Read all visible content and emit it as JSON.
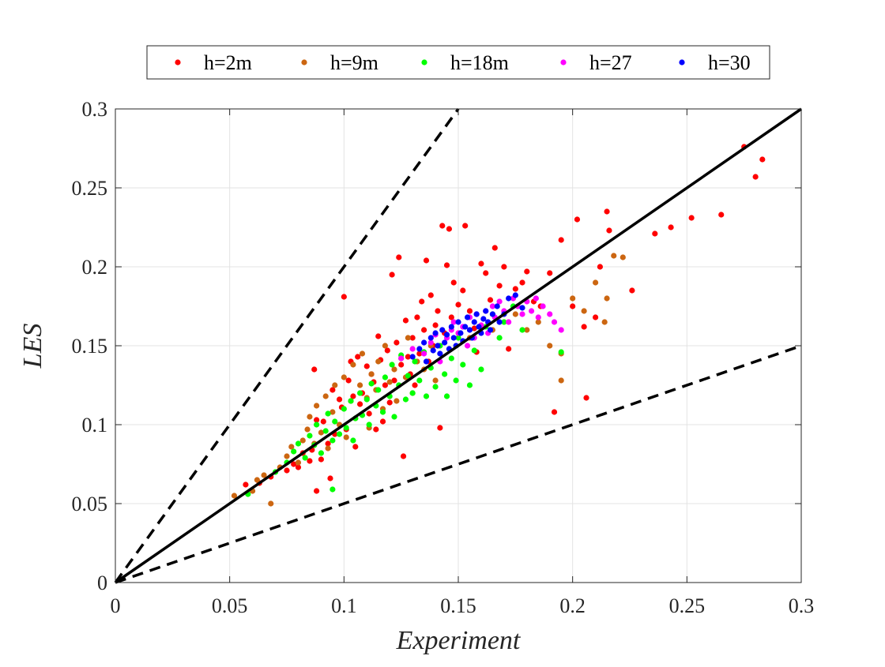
{
  "chart_data": {
    "type": "scatter",
    "xlabel": "Experiment",
    "ylabel": "LES",
    "xlim": [
      0,
      0.3
    ],
    "ylim": [
      0,
      0.3
    ],
    "grid": true,
    "legend_position": "top-outside",
    "x_ticks": [
      "0",
      "0.05",
      "0.1",
      "0.15",
      "0.2",
      "0.25",
      "0.3"
    ],
    "y_ticks": [
      "0",
      "0.05",
      "0.1",
      "0.15",
      "0.2",
      "0.25",
      "0.3"
    ],
    "reference_lines": [
      {
        "style": "solid",
        "x": [
          0,
          0.3
        ],
        "y": [
          0,
          0.3
        ]
      },
      {
        "style": "dashed",
        "x": [
          0,
          0.15
        ],
        "y": [
          0,
          0.3
        ]
      },
      {
        "style": "dashed",
        "x": [
          0,
          0.3
        ],
        "y": [
          0,
          0.15
        ]
      }
    ],
    "series": [
      {
        "name": "h=2m",
        "color": "#ff0000",
        "points": [
          [
            0.057,
            0.062
          ],
          [
            0.063,
            0.063
          ],
          [
            0.068,
            0.067
          ],
          [
            0.075,
            0.071
          ],
          [
            0.078,
            0.075
          ],
          [
            0.08,
            0.073
          ],
          [
            0.082,
            0.082
          ],
          [
            0.085,
            0.077
          ],
          [
            0.086,
            0.084
          ],
          [
            0.087,
            0.135
          ],
          [
            0.088,
            0.103
          ],
          [
            0.088,
            0.058
          ],
          [
            0.09,
            0.078
          ],
          [
            0.091,
            0.102
          ],
          [
            0.093,
            0.088
          ],
          [
            0.094,
            0.066
          ],
          [
            0.095,
            0.122
          ],
          [
            0.096,
            0.094
          ],
          [
            0.098,
            0.116
          ],
          [
            0.099,
            0.111
          ],
          [
            0.1,
            0.181
          ],
          [
            0.101,
            0.097
          ],
          [
            0.102,
            0.128
          ],
          [
            0.103,
            0.14
          ],
          [
            0.104,
            0.118
          ],
          [
            0.105,
            0.086
          ],
          [
            0.106,
            0.143
          ],
          [
            0.107,
            0.113
          ],
          [
            0.108,
            0.12
          ],
          [
            0.11,
            0.137
          ],
          [
            0.111,
            0.107
          ],
          [
            0.112,
            0.132
          ],
          [
            0.113,
            0.127
          ],
          [
            0.114,
            0.097
          ],
          [
            0.115,
            0.156
          ],
          [
            0.116,
            0.141
          ],
          [
            0.117,
            0.102
          ],
          [
            0.118,
            0.125
          ],
          [
            0.119,
            0.147
          ],
          [
            0.12,
            0.114
          ],
          [
            0.121,
            0.195
          ],
          [
            0.122,
            0.128
          ],
          [
            0.123,
            0.152
          ],
          [
            0.124,
            0.206
          ],
          [
            0.125,
            0.138
          ],
          [
            0.126,
            0.08
          ],
          [
            0.127,
            0.166
          ],
          [
            0.128,
            0.143
          ],
          [
            0.129,
            0.132
          ],
          [
            0.13,
            0.155
          ],
          [
            0.131,
            0.125
          ],
          [
            0.132,
            0.168
          ],
          [
            0.133,
            0.145
          ],
          [
            0.134,
            0.178
          ],
          [
            0.135,
            0.16
          ],
          [
            0.136,
            0.204
          ],
          [
            0.137,
            0.14
          ],
          [
            0.138,
            0.182
          ],
          [
            0.139,
            0.15
          ],
          [
            0.14,
            0.163
          ],
          [
            0.141,
            0.172
          ],
          [
            0.142,
            0.098
          ],
          [
            0.143,
            0.226
          ],
          [
            0.144,
            0.158
          ],
          [
            0.145,
            0.201
          ],
          [
            0.146,
            0.224
          ],
          [
            0.147,
            0.168
          ],
          [
            0.148,
            0.19
          ],
          [
            0.15,
            0.176
          ],
          [
            0.152,
            0.185
          ],
          [
            0.153,
            0.226
          ],
          [
            0.155,
            0.172
          ],
          [
            0.157,
            0.161
          ],
          [
            0.158,
            0.146
          ],
          [
            0.16,
            0.202
          ],
          [
            0.162,
            0.196
          ],
          [
            0.164,
            0.179
          ],
          [
            0.166,
            0.212
          ],
          [
            0.168,
            0.188
          ],
          [
            0.17,
            0.2
          ],
          [
            0.172,
            0.148
          ],
          [
            0.175,
            0.186
          ],
          [
            0.178,
            0.19
          ],
          [
            0.18,
            0.197
          ],
          [
            0.183,
            0.178
          ],
          [
            0.186,
            0.175
          ],
          [
            0.19,
            0.196
          ],
          [
            0.192,
            0.108
          ],
          [
            0.195,
            0.217
          ],
          [
            0.2,
            0.175
          ],
          [
            0.202,
            0.23
          ],
          [
            0.205,
            0.162
          ],
          [
            0.206,
            0.117
          ],
          [
            0.21,
            0.168
          ],
          [
            0.212,
            0.2
          ],
          [
            0.215,
            0.235
          ],
          [
            0.216,
            0.223
          ],
          [
            0.226,
            0.185
          ],
          [
            0.236,
            0.221
          ],
          [
            0.243,
            0.225
          ],
          [
            0.252,
            0.231
          ],
          [
            0.265,
            0.233
          ],
          [
            0.275,
            0.276
          ],
          [
            0.28,
            0.257
          ],
          [
            0.283,
            0.268
          ]
        ]
      },
      {
        "name": "h=9m",
        "color": "#cc6611",
        "points": [
          [
            0.052,
            0.055
          ],
          [
            0.06,
            0.058
          ],
          [
            0.062,
            0.065
          ],
          [
            0.065,
            0.068
          ],
          [
            0.068,
            0.05
          ],
          [
            0.072,
            0.073
          ],
          [
            0.075,
            0.08
          ],
          [
            0.077,
            0.086
          ],
          [
            0.08,
            0.076
          ],
          [
            0.082,
            0.09
          ],
          [
            0.084,
            0.097
          ],
          [
            0.085,
            0.105
          ],
          [
            0.087,
            0.088
          ],
          [
            0.088,
            0.112
          ],
          [
            0.09,
            0.095
          ],
          [
            0.092,
            0.118
          ],
          [
            0.093,
            0.085
          ],
          [
            0.095,
            0.108
          ],
          [
            0.096,
            0.125
          ],
          [
            0.098,
            0.1
          ],
          [
            0.1,
            0.13
          ],
          [
            0.101,
            0.092
          ],
          [
            0.103,
            0.115
          ],
          [
            0.104,
            0.138
          ],
          [
            0.105,
            0.104
          ],
          [
            0.107,
            0.125
          ],
          [
            0.108,
            0.145
          ],
          [
            0.11,
            0.117
          ],
          [
            0.111,
            0.098
          ],
          [
            0.112,
            0.132
          ],
          [
            0.114,
            0.122
          ],
          [
            0.115,
            0.14
          ],
          [
            0.117,
            0.11
          ],
          [
            0.118,
            0.15
          ],
          [
            0.12,
            0.127
          ],
          [
            0.122,
            0.135
          ],
          [
            0.123,
            0.115
          ],
          [
            0.125,
            0.142
          ],
          [
            0.127,
            0.13
          ],
          [
            0.128,
            0.155
          ],
          [
            0.13,
            0.12
          ],
          [
            0.132,
            0.14
          ],
          [
            0.135,
            0.135
          ],
          [
            0.138,
            0.15
          ],
          [
            0.14,
            0.128
          ],
          [
            0.155,
            0.155
          ],
          [
            0.165,
            0.16
          ],
          [
            0.175,
            0.17
          ],
          [
            0.18,
            0.16
          ],
          [
            0.185,
            0.165
          ],
          [
            0.19,
            0.15
          ],
          [
            0.195,
            0.145
          ],
          [
            0.195,
            0.128
          ],
          [
            0.2,
            0.18
          ],
          [
            0.205,
            0.172
          ],
          [
            0.21,
            0.19
          ],
          [
            0.214,
            0.165
          ],
          [
            0.215,
            0.18
          ],
          [
            0.218,
            0.207
          ],
          [
            0.222,
            0.206
          ]
        ]
      },
      {
        "name": "h=18m",
        "color": "#00ff00",
        "points": [
          [
            0.058,
            0.056
          ],
          [
            0.07,
            0.07
          ],
          [
            0.075,
            0.076
          ],
          [
            0.078,
            0.083
          ],
          [
            0.08,
            0.088
          ],
          [
            0.083,
            0.079
          ],
          [
            0.085,
            0.093
          ],
          [
            0.087,
            0.087
          ],
          [
            0.088,
            0.1
          ],
          [
            0.09,
            0.082
          ],
          [
            0.092,
            0.096
          ],
          [
            0.093,
            0.107
          ],
          [
            0.095,
            0.059
          ],
          [
            0.095,
            0.09
          ],
          [
            0.096,
            0.102
          ],
          [
            0.098,
            0.094
          ],
          [
            0.1,
            0.11
          ],
          [
            0.101,
            0.098
          ],
          [
            0.103,
            0.115
          ],
          [
            0.104,
            0.09
          ],
          [
            0.105,
            0.104
          ],
          [
            0.107,
            0.12
          ],
          [
            0.108,
            0.106
          ],
          [
            0.11,
            0.116
          ],
          [
            0.111,
            0.1
          ],
          [
            0.112,
            0.126
          ],
          [
            0.114,
            0.112
          ],
          [
            0.115,
            0.122
          ],
          [
            0.117,
            0.108
          ],
          [
            0.118,
            0.13
          ],
          [
            0.12,
            0.118
          ],
          [
            0.121,
            0.138
          ],
          [
            0.122,
            0.105
          ],
          [
            0.124,
            0.125
          ],
          [
            0.125,
            0.144
          ],
          [
            0.127,
            0.116
          ],
          [
            0.128,
            0.131
          ],
          [
            0.13,
            0.12
          ],
          [
            0.131,
            0.14
          ],
          [
            0.133,
            0.128
          ],
          [
            0.135,
            0.146
          ],
          [
            0.136,
            0.118
          ],
          [
            0.138,
            0.136
          ],
          [
            0.14,
            0.124
          ],
          [
            0.142,
            0.15
          ],
          [
            0.144,
            0.132
          ],
          [
            0.145,
            0.118
          ],
          [
            0.147,
            0.142
          ],
          [
            0.149,
            0.128
          ],
          [
            0.15,
            0.155
          ],
          [
            0.152,
            0.138
          ],
          [
            0.155,
            0.125
          ],
          [
            0.157,
            0.147
          ],
          [
            0.16,
            0.135
          ],
          [
            0.162,
            0.162
          ],
          [
            0.165,
            0.17
          ],
          [
            0.168,
            0.155
          ],
          [
            0.17,
            0.165
          ],
          [
            0.174,
            0.175
          ],
          [
            0.178,
            0.16
          ],
          [
            0.195,
            0.146
          ]
        ]
      },
      {
        "name": "h=27",
        "color": "#ff00ff",
        "points": [
          [
            0.125,
            0.142
          ],
          [
            0.13,
            0.148
          ],
          [
            0.135,
            0.145
          ],
          [
            0.138,
            0.152
          ],
          [
            0.14,
            0.157
          ],
          [
            0.142,
            0.14
          ],
          [
            0.145,
            0.155
          ],
          [
            0.147,
            0.16
          ],
          [
            0.148,
            0.165
          ],
          [
            0.15,
            0.158
          ],
          [
            0.152,
            0.162
          ],
          [
            0.154,
            0.15
          ],
          [
            0.155,
            0.168
          ],
          [
            0.157,
            0.155
          ],
          [
            0.158,
            0.17
          ],
          [
            0.16,
            0.163
          ],
          [
            0.162,
            0.172
          ],
          [
            0.163,
            0.158
          ],
          [
            0.165,
            0.175
          ],
          [
            0.166,
            0.168
          ],
          [
            0.168,
            0.178
          ],
          [
            0.17,
            0.172
          ],
          [
            0.172,
            0.165
          ],
          [
            0.174,
            0.18
          ],
          [
            0.176,
            0.175
          ],
          [
            0.178,
            0.17
          ],
          [
            0.18,
            0.178
          ],
          [
            0.182,
            0.172
          ],
          [
            0.184,
            0.18
          ],
          [
            0.185,
            0.168
          ],
          [
            0.187,
            0.175
          ],
          [
            0.19,
            0.17
          ],
          [
            0.192,
            0.165
          ],
          [
            0.195,
            0.16
          ]
        ]
      },
      {
        "name": "h=30",
        "color": "#0000ff",
        "points": [
          [
            0.13,
            0.143
          ],
          [
            0.133,
            0.148
          ],
          [
            0.135,
            0.152
          ],
          [
            0.136,
            0.14
          ],
          [
            0.138,
            0.155
          ],
          [
            0.139,
            0.147
          ],
          [
            0.14,
            0.158
          ],
          [
            0.141,
            0.15
          ],
          [
            0.142,
            0.145
          ],
          [
            0.143,
            0.16
          ],
          [
            0.144,
            0.152
          ],
          [
            0.145,
            0.157
          ],
          [
            0.146,
            0.148
          ],
          [
            0.147,
            0.162
          ],
          [
            0.148,
            0.155
          ],
          [
            0.149,
            0.15
          ],
          [
            0.15,
            0.165
          ],
          [
            0.151,
            0.158
          ],
          [
            0.152,
            0.153
          ],
          [
            0.153,
            0.162
          ],
          [
            0.154,
            0.168
          ],
          [
            0.155,
            0.16
          ],
          [
            0.156,
            0.155
          ],
          [
            0.157,
            0.165
          ],
          [
            0.158,
            0.17
          ],
          [
            0.159,
            0.162
          ],
          [
            0.16,
            0.158
          ],
          [
            0.161,
            0.167
          ],
          [
            0.162,
            0.172
          ],
          [
            0.163,
            0.165
          ],
          [
            0.164,
            0.16
          ],
          [
            0.165,
            0.17
          ],
          [
            0.167,
            0.175
          ],
          [
            0.168,
            0.165
          ],
          [
            0.17,
            0.17
          ],
          [
            0.172,
            0.18
          ],
          [
            0.175,
            0.182
          ],
          [
            0.178,
            0.174
          ]
        ]
      }
    ]
  }
}
